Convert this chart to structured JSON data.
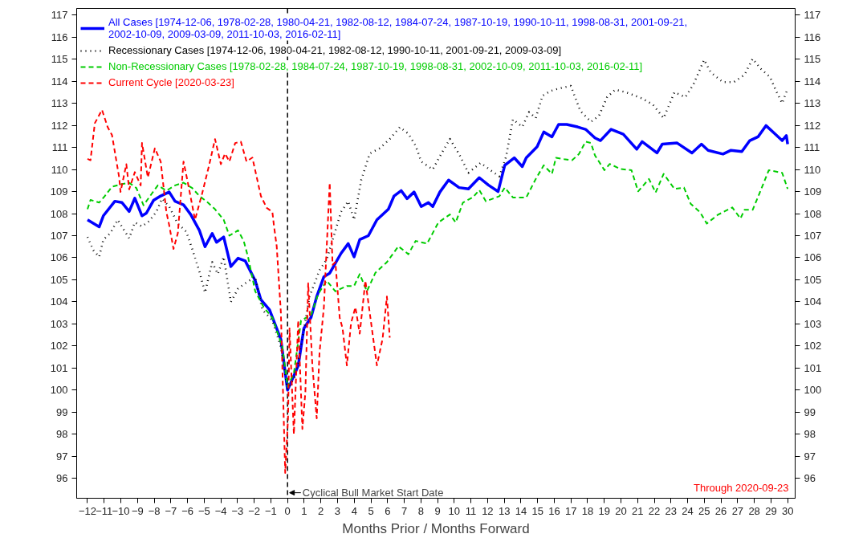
{
  "chart_data": {
    "type": "line",
    "xlabel": "Months Prior / Months Forward",
    "xlim": [
      -12.65,
      30.45
    ],
    "ylim": [
      95.1,
      117.3
    ],
    "xticks": [
      -12,
      -11,
      -10,
      -9,
      -8,
      -7,
      -6,
      -5,
      -4,
      -3,
      -2,
      -1,
      0,
      1,
      2,
      3,
      4,
      5,
      6,
      7,
      8,
      9,
      10,
      11,
      12,
      13,
      14,
      15,
      16,
      17,
      18,
      19,
      20,
      21,
      22,
      23,
      24,
      25,
      26,
      27,
      28,
      29,
      30
    ],
    "yticks": [
      96,
      97,
      98,
      99,
      100,
      101,
      102,
      103,
      104,
      105,
      106,
      107,
      108,
      109,
      110,
      111,
      112,
      113,
      114,
      115,
      116,
      117
    ],
    "y2lim": [
      95.1,
      117.3
    ],
    "y2ticks": [
      96,
      97,
      98,
      99,
      100,
      101,
      102,
      103,
      104,
      105,
      106,
      107,
      108,
      109,
      110,
      111,
      112,
      113,
      114,
      115,
      116,
      117
    ],
    "grid": false,
    "legend": "top left",
    "marker": "none",
    "ref_lines": [
      {
        "axis": "x",
        "value": 0,
        "label": "Cyclical Bull Market Start Date",
        "color": "#000000",
        "line_style": "dashed"
      }
    ],
    "annotations": [
      "Through 2020-09-23"
    ],
    "series": [
      {
        "name": "All Cases [1974-12-06, 1978-02-28, 1980-04-21, 1982-08-12, 1984-07-24, 1987-10-19, 1990-10-11, 1998-08-31, 2001-09-21, 2002-10-09, 2009-03-09, 2011-10-03, 2016-02-11]",
        "color": "#0000ff",
        "line_style": "solid",
        "x": [
          -12,
          -11.3,
          -11.05,
          -10.36,
          -9.93,
          -9.5,
          -9.16,
          -8.73,
          -8.47,
          -8.04,
          -7.61,
          -7.1,
          -6.75,
          -6.24,
          -5.81,
          -5.29,
          -4.95,
          -4.52,
          -4.26,
          -3.83,
          -3.4,
          -2.97,
          -2.54,
          -1.94,
          -1.6,
          -1.08,
          -0.4,
          0,
          0.29,
          0.64,
          0.98,
          1.41,
          1.75,
          2.18,
          2.53,
          3.21,
          3.64,
          3.99,
          4.33,
          4.85,
          5.36,
          6.05,
          6.39,
          6.82,
          7.17,
          7.59,
          8.02,
          8.45,
          8.71,
          9.14,
          9.66,
          10.29,
          10.85,
          11.5,
          12.06,
          12.63,
          13.03,
          13.6,
          14.08,
          14.32,
          14.97,
          15.37,
          15.86,
          16.26,
          16.75,
          17.4,
          17.88,
          18.44,
          18.77,
          19.41,
          20.14,
          20.95,
          21.27,
          22.16,
          22.48,
          23.37,
          24.26,
          24.83,
          25.23,
          26.12,
          26.6,
          27.25,
          27.73,
          28.22,
          28.7,
          29.19,
          29.67,
          29.92,
          30
        ],
        "values": [
          107.72,
          107.4,
          107.9,
          108.56,
          108.5,
          108.1,
          108.7,
          107.9,
          108.02,
          108.6,
          108.8,
          108.98,
          108.56,
          108.4,
          107.96,
          107.24,
          106.5,
          107.1,
          106.7,
          106.94,
          105.6,
          105.98,
          105.86,
          104.96,
          104.1,
          103.64,
          102.3,
          100.0,
          100.5,
          101.1,
          102.8,
          103.3,
          104.24,
          105.14,
          105.3,
          106.2,
          106.64,
          106.04,
          106.82,
          107.0,
          107.72,
          108.2,
          108.8,
          109.04,
          108.68,
          108.98,
          108.32,
          108.5,
          108.32,
          108.98,
          109.52,
          109.18,
          109.12,
          109.63,
          109.29,
          109.0,
          110.19,
          110.53,
          110.13,
          110.53,
          111.03,
          111.7,
          111.48,
          112.04,
          112.04,
          111.93,
          111.82,
          111.43,
          111.31,
          111.82,
          111.6,
          110.92,
          111.26,
          110.75,
          111.15,
          111.2,
          110.75,
          111.15,
          110.87,
          110.7,
          110.87,
          110.81,
          111.31,
          111.48,
          111.99,
          111.65,
          111.31,
          111.54,
          111.15
        ]
      },
      {
        "name": "Recessionary Cases [1974-12-06, 1980-04-21, 1982-08-12, 1990-10-11, 2001-09-21, 2009-03-09]",
        "color": "#000000",
        "line_style": "dotted",
        "x": [
          -12,
          -11.65,
          -11.3,
          -11.05,
          -10.62,
          -10.19,
          -9.5,
          -9.16,
          -8.73,
          -8.3,
          -7.87,
          -7.53,
          -7.1,
          -6.58,
          -6.07,
          -5.72,
          -5.29,
          -4.95,
          -4.52,
          -4.18,
          -3.83,
          -3.4,
          -2.97,
          -2.54,
          -1.94,
          -1.51,
          -0.91,
          -0.4,
          0,
          0.46,
          0.89,
          1.32,
          1.92,
          2.35,
          2.78,
          3.21,
          3.64,
          3.99,
          4.42,
          4.93,
          5.53,
          6.13,
          6.74,
          7.25,
          7.68,
          8.02,
          8.71,
          9.14,
          9.74,
          10.29,
          10.85,
          11.58,
          12.39,
          12.71,
          13.11,
          13.52,
          14.08,
          14.49,
          14.89,
          15.29,
          15.78,
          16.26,
          16.99,
          17.56,
          18.2,
          18.69,
          19.17,
          19.66,
          20.3,
          21.27,
          21.92,
          22.56,
          23.21,
          23.86,
          24.34,
          24.99,
          25.39,
          26.12,
          26.77,
          27.41,
          27.9,
          28.38,
          28.95,
          29.27,
          29.67,
          30
        ],
        "values": [
          106.94,
          106.34,
          106.04,
          106.82,
          107.12,
          107.72,
          106.88,
          107.6,
          107.42,
          107.66,
          108.08,
          108.68,
          108.32,
          107.54,
          107.18,
          106.4,
          105.38,
          104.42,
          105.8,
          105.26,
          106.04,
          104.0,
          104.6,
          104.84,
          105.14,
          103.64,
          103.16,
          101.96,
          100.04,
          100.64,
          102.32,
          104.24,
          105.44,
          105.92,
          107.0,
          108.08,
          108.56,
          107.72,
          109.52,
          110.72,
          110.96,
          111.38,
          111.92,
          111.62,
          111.08,
          110.36,
          110.0,
          110.6,
          111.38,
          110.7,
          109.85,
          110.3,
          109.85,
          109.69,
          110.58,
          112.27,
          111.93,
          112.6,
          112.33,
          113.34,
          113.56,
          113.67,
          113.79,
          112.66,
          112.16,
          112.44,
          113.28,
          113.62,
          113.5,
          113.22,
          112.94,
          112.33,
          113.5,
          113.28,
          113.84,
          114.97,
          114.4,
          113.96,
          113.96,
          114.29,
          115.02,
          114.57,
          114.18,
          113.62,
          113.0,
          113.67
        ]
      },
      {
        "name": "Non-Recessionary Cases [1978-02-28, 1984-07-24, 1987-10-19, 1998-08-31, 2002-10-09, 2011-10-03, 2016-02-11]",
        "color": "#00cc00",
        "line_style": "dashed",
        "x": [
          -12,
          -11.82,
          -11.3,
          -10.96,
          -10.53,
          -9.93,
          -9.5,
          -9.07,
          -8.64,
          -8.13,
          -7.78,
          -7.27,
          -6.75,
          -6.24,
          -5.72,
          -5.29,
          -4.78,
          -4.35,
          -3.83,
          -3.49,
          -2.97,
          -2.63,
          -2.37,
          -1.94,
          -1.43,
          -0.91,
          -0.31,
          0,
          0.38,
          0.81,
          1.41,
          1.84,
          2.35,
          2.87,
          3.56,
          3.99,
          4.33,
          4.76,
          5.27,
          5.96,
          6.65,
          7.25,
          7.68,
          8.37,
          9.05,
          9.74,
          10.09,
          10.52,
          11.12,
          11.5,
          11.9,
          12.71,
          13.03,
          13.52,
          14.32,
          14.89,
          15.37,
          15.86,
          16.1,
          16.59,
          17.07,
          17.48,
          17.88,
          18.2,
          18.44,
          19.01,
          19.33,
          19.98,
          20.63,
          21.03,
          21.68,
          22.08,
          22.56,
          23.21,
          23.78,
          24.18,
          24.75,
          25.15,
          25.8,
          26.68,
          27.17,
          27.41,
          27.9,
          28.3,
          28.87,
          29.67,
          30
        ],
        "values": [
          108.2,
          108.62,
          108.5,
          108.8,
          109.22,
          109.34,
          109.4,
          109.16,
          108.38,
          108.92,
          109.28,
          109.04,
          109.28,
          109.4,
          109.16,
          108.8,
          108.5,
          108.2,
          107.72,
          107.0,
          107.24,
          106.76,
          106.04,
          104.48,
          103.76,
          103.28,
          101.96,
          100.16,
          100.76,
          103.16,
          103.4,
          104.36,
          104.96,
          104.48,
          104.72,
          104.72,
          105.26,
          104.48,
          105.32,
          105.8,
          106.52,
          106.16,
          106.76,
          106.64,
          107.6,
          107.96,
          107.6,
          108.5,
          108.74,
          109.07,
          108.56,
          108.79,
          109.18,
          108.73,
          108.73,
          109.57,
          110.19,
          109.8,
          110.53,
          110.47,
          110.42,
          110.7,
          111.26,
          111.2,
          110.64,
          109.97,
          110.25,
          110.02,
          109.97,
          109.01,
          109.57,
          108.96,
          109.8,
          109.12,
          109.18,
          108.45,
          108.06,
          107.55,
          107.94,
          108.28,
          107.78,
          108.17,
          108.17,
          108.9,
          109.97,
          109.85,
          109.12
        ]
      },
      {
        "name": "Current Cycle [2020-03-23]",
        "color": "#ff0000",
        "line_style": "dashed",
        "x": [
          -12,
          -11.82,
          -11.56,
          -11.13,
          -10.79,
          -10.53,
          -10.1,
          -10.02,
          -9.67,
          -9.5,
          -9.16,
          -8.81,
          -8.73,
          -8.38,
          -7.96,
          -7.61,
          -7.27,
          -7.1,
          -6.84,
          -6.58,
          -6.24,
          -5.98,
          -5.55,
          -5.12,
          -4.69,
          -4.35,
          -4.0,
          -3.75,
          -3.49,
          -3.14,
          -2.8,
          -2.46,
          -2.11,
          -1.6,
          -1.25,
          -0.91,
          -0.82,
          -0.65,
          -0.4,
          -0.14,
          0.03,
          0.12,
          0.38,
          0.64,
          0.89,
          1.07,
          1.24,
          1.49,
          1.75,
          1.92,
          2.18,
          2.53,
          2.7,
          2.87,
          3.13,
          3.3,
          3.56,
          3.81,
          4.07,
          4.33,
          4.67,
          5.1,
          5.36,
          5.7,
          5.96,
          6.13
        ],
        "values": [
          110.48,
          110.42,
          112.1,
          112.7,
          111.92,
          111.56,
          109.64,
          108.98,
          110.24,
          109.1,
          109.88,
          109.28,
          111.2,
          109.64,
          110.96,
          110.36,
          108.08,
          107.48,
          106.4,
          107.12,
          110.36,
          109.4,
          107.72,
          108.92,
          110.24,
          111.38,
          110.24,
          110.72,
          110.36,
          111.2,
          111.26,
          110.36,
          110.54,
          108.8,
          108.26,
          108.08,
          107.48,
          106.52,
          103.52,
          96.25,
          98.72,
          102.8,
          98.0,
          103.16,
          98.24,
          99.92,
          104.84,
          101.12,
          98.72,
          101.72,
          103.76,
          109.4,
          105.68,
          105.8,
          103.28,
          102.8,
          101.12,
          103.04,
          103.76,
          102.56,
          104.96,
          102.56,
          101.12,
          102.32,
          104.24,
          102.38
        ]
      }
    ]
  }
}
